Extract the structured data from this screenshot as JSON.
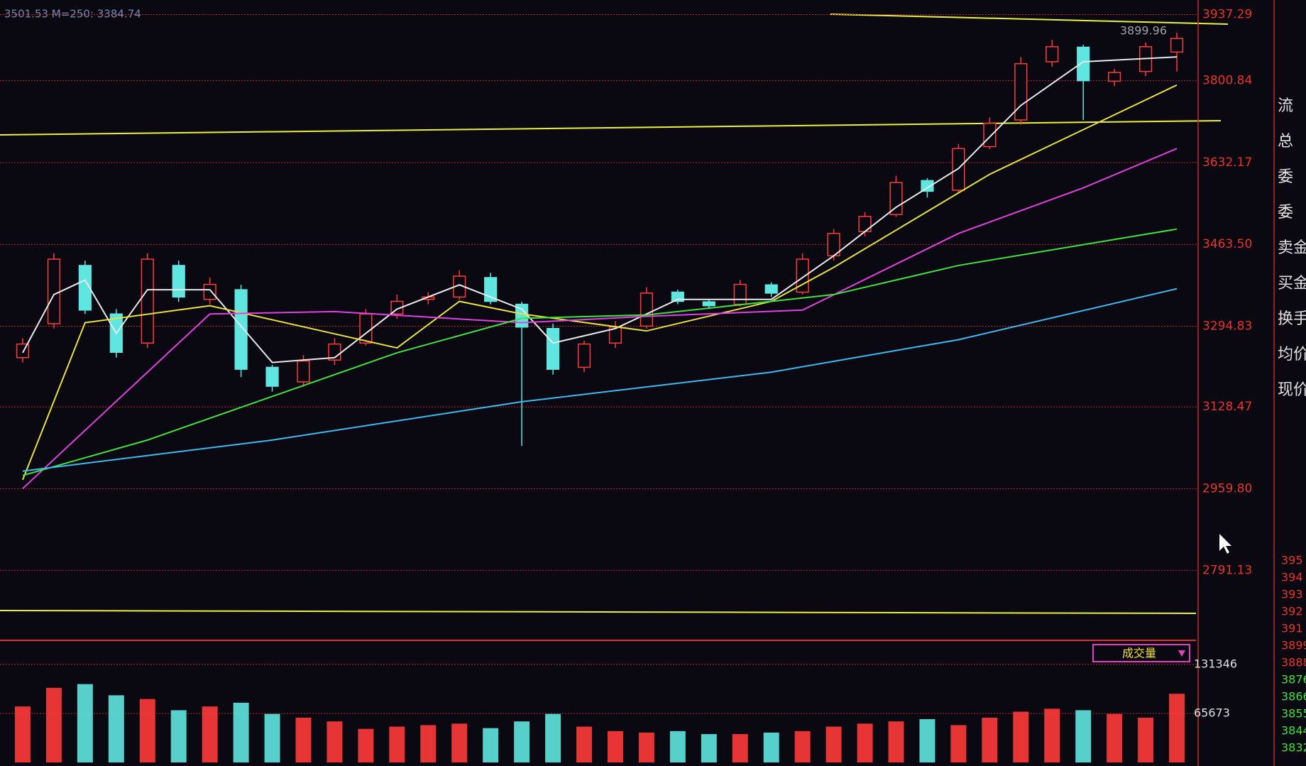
{
  "chart_data": {
    "type": "candlestick",
    "indicator_text": "3501.53 M=250: 3384.74",
    "high_label": 3899.96,
    "up_color": "#ff3b3b",
    "down_color": "#5fe6e0",
    "grid": true,
    "ylim": [
      2650,
      3960
    ],
    "yticks": [
      2791.13,
      {
        "value": 2959.8,
        "label": "2959.80"
      },
      3128.47,
      3294.83,
      {
        "value": 3463.5,
        "label": "3463.50"
      },
      3632.17,
      3800.84,
      3937.29
    ],
    "open": [
      3230,
      3300,
      3420,
      3320,
      3260,
      3420,
      3350,
      3370,
      3210,
      3180,
      3225,
      3260,
      3320,
      3350,
      3355,
      3395,
      3340,
      3290,
      3210,
      3260,
      3295,
      3365,
      3345,
      3340,
      3380,
      3365,
      3440,
      3490,
      3525,
      3595,
      3575,
      3665,
      3720,
      3840,
      3870,
      3800,
      3820,
      3860
    ],
    "high": [
      3270,
      3445,
      3430,
      3330,
      3445,
      3430,
      3395,
      3380,
      3215,
      3235,
      3270,
      3330,
      3360,
      3365,
      3410,
      3405,
      3345,
      3300,
      3265,
      3305,
      3375,
      3370,
      3350,
      3390,
      3385,
      3445,
      3495,
      3530,
      3605,
      3600,
      3670,
      3725,
      3850,
      3885,
      3875,
      3825,
      3880,
      3900
    ],
    "low": [
      3220,
      3290,
      3320,
      3230,
      3250,
      3345,
      3340,
      3190,
      3160,
      3170,
      3215,
      3255,
      3310,
      3340,
      3350,
      3340,
      3048,
      3195,
      3200,
      3250,
      3290,
      3340,
      3330,
      3335,
      3355,
      3360,
      3430,
      3480,
      3520,
      3560,
      3570,
      3660,
      3710,
      3830,
      3720,
      3790,
      3810,
      3820
    ],
    "close": [
      3258,
      3433,
      3328,
      3241,
      3433,
      3355,
      3381,
      3206,
      3171,
      3223,
      3258,
      3320,
      3346,
      3355,
      3398,
      3346,
      3293,
      3206,
      3258,
      3293,
      3363,
      3346,
      3337,
      3381,
      3363,
      3433,
      3486,
      3521,
      3591,
      3573,
      3661,
      3713,
      3836,
      3871,
      3801,
      3818,
      3871,
      3888
    ],
    "ma_series": [
      {
        "color": "#e8e8e8",
        "x": [
          0,
          1,
          2,
          3,
          4,
          6,
          8,
          10,
          12,
          14,
          16,
          17,
          19,
          21,
          24,
          26,
          28,
          30,
          32,
          34,
          37
        ],
        "values": [
          3240,
          3360,
          3390,
          3280,
          3370,
          3370,
          3220,
          3230,
          3330,
          3380,
          3330,
          3260,
          3290,
          3350,
          3350,
          3440,
          3540,
          3620,
          3750,
          3840,
          3850
        ]
      },
      {
        "color": "#e6e040",
        "x": [
          0,
          2,
          6,
          12,
          14,
          16,
          20,
          24,
          26,
          31,
          37
        ],
        "values": [
          2978,
          3302,
          3337,
          3250,
          3346,
          3320,
          3285,
          3346,
          3416,
          3608,
          3792
        ]
      },
      {
        "color": "#e040e0",
        "x": [
          0,
          4,
          6,
          10,
          16,
          20,
          25,
          30,
          34,
          37
        ],
        "values": [
          2960,
          3200,
          3320,
          3325,
          3302,
          3315,
          3328,
          3486,
          3580,
          3661
        ]
      },
      {
        "color": "#40e040",
        "x": [
          0,
          4,
          8,
          12,
          16,
          20,
          26,
          30,
          37
        ],
        "values": [
          2987,
          3060,
          3150,
          3240,
          3311,
          3318,
          3360,
          3420,
          3495
        ]
      },
      {
        "color": "#40b8f0",
        "x": [
          0,
          8,
          16,
          24,
          30,
          37
        ],
        "values": [
          2996,
          3060,
          3139,
          3200,
          3267,
          3372
        ]
      }
    ],
    "volume": {
      "label": "成交量",
      "ylim": [
        0,
        156000
      ],
      "yticks": [
        65673,
        131346
      ],
      "values": [
        75000,
        100000,
        105000,
        90000,
        85000,
        70000,
        75000,
        80000,
        65000,
        60000,
        55000,
        45000,
        48000,
        50000,
        52000,
        46000,
        55000,
        65000,
        48000,
        42000,
        40000,
        42000,
        38000,
        38000,
        40000,
        42000,
        48000,
        52000,
        55000,
        58000,
        50000,
        60000,
        68000,
        72000,
        70000,
        65000,
        60000,
        92000
      ]
    }
  },
  "sidebar": {
    "labels": [
      "流",
      "总",
      "委",
      "委",
      "卖金",
      "买金",
      "换手",
      "均价",
      "现价"
    ],
    "prices": [
      395,
      394,
      393,
      392,
      391,
      3899,
      3888,
      3876,
      3866,
      3855,
      3844,
      3832
    ]
  }
}
